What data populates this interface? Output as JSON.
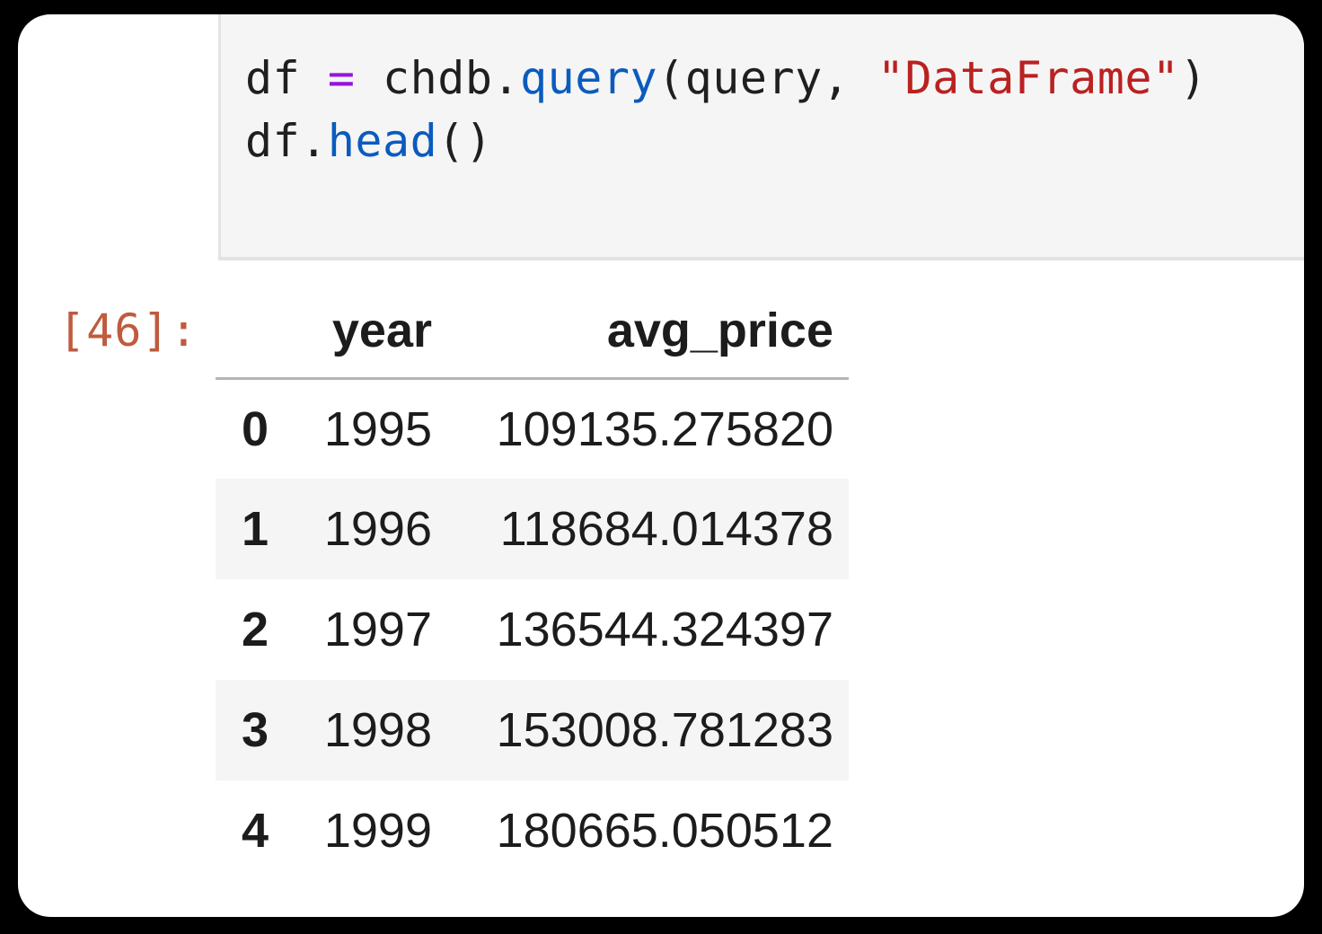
{
  "colors": {
    "frame_background": "#000000",
    "card_background": "#ffffff",
    "cell_background": "#f5f5f5",
    "cell_border": "#e3e3e3",
    "stripe_row": "#f5f5f5",
    "table_text": "#1c1c1c",
    "header_rule": "#b5b5b5",
    "prompt": "#bf5b3e",
    "token_plain": "#1f1f1f",
    "token_operator": "#9515dd",
    "token_function": "#0b5bbf",
    "token_string": "#ba2121"
  },
  "code_cell": {
    "lines": [
      [
        {
          "text": "df ",
          "type": "plain"
        },
        {
          "text": "=",
          "type": "operator"
        },
        {
          "text": " chdb.",
          "type": "plain"
        },
        {
          "text": "query",
          "type": "function"
        },
        {
          "text": "(query, ",
          "type": "plain"
        },
        {
          "text": "\"DataFrame\"",
          "type": "string"
        },
        {
          "text": ")",
          "type": "plain"
        }
      ],
      [
        {
          "text": "df.",
          "type": "plain"
        },
        {
          "text": "head",
          "type": "function"
        },
        {
          "text": "()",
          "type": "plain"
        }
      ]
    ]
  },
  "output": {
    "execution_count": "[46]:",
    "table": {
      "index_header": "",
      "columns": [
        "year",
        "avg_price"
      ],
      "rows": [
        [
          "0",
          "1995",
          "109135.275820"
        ],
        [
          "1",
          "1996",
          "118684.014378"
        ],
        [
          "2",
          "1997",
          "136544.324397"
        ],
        [
          "3",
          "1998",
          "153008.781283"
        ],
        [
          "4",
          "1999",
          "180665.050512"
        ]
      ]
    }
  }
}
